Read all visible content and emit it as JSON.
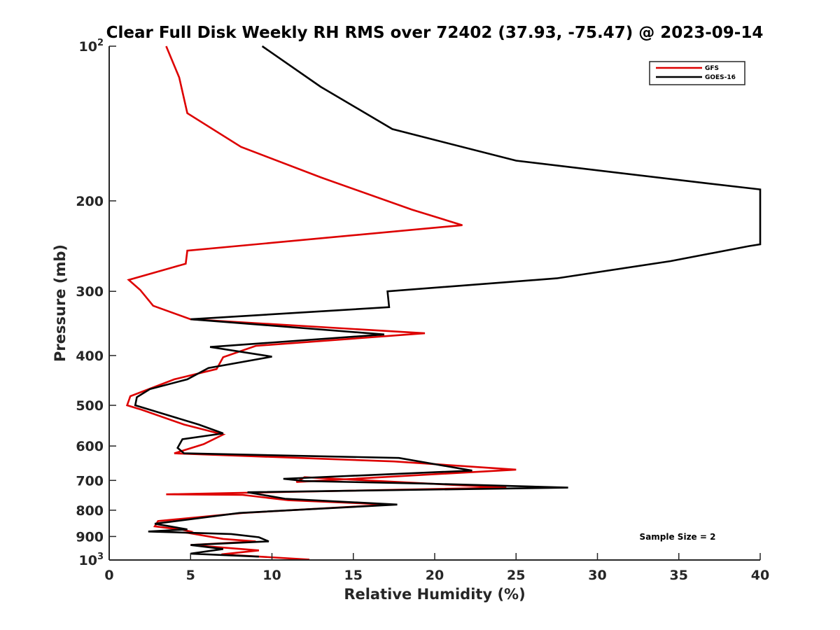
{
  "chart_data": {
    "type": "line",
    "title": "Clear Full Disk Weekly RH RMS over 72402 (37.93, -75.47) @ 2023-09-14",
    "xlabel": "Relative Humidity (%)",
    "ylabel": "Pressure (mb)",
    "xlim": [
      0,
      40
    ],
    "ylim": [
      100,
      1000
    ],
    "yscale": "log",
    "yreversed": true,
    "grid": false,
    "x_ticks": [
      "0",
      "5",
      "10",
      "15",
      "20",
      "25",
      "30",
      "35",
      "40"
    ],
    "y_ticks": [
      {
        "value": 100,
        "base": "10",
        "exp": "2"
      },
      {
        "value": 200,
        "label": "200"
      },
      {
        "value": 300,
        "label": "300"
      },
      {
        "value": 400,
        "label": "400"
      },
      {
        "value": 500,
        "label": "500"
      },
      {
        "value": 600,
        "label": "600"
      },
      {
        "value": 700,
        "label": "700"
      },
      {
        "value": 800,
        "label": "800"
      },
      {
        "value": 900,
        "label": "900"
      },
      {
        "value": 1000,
        "base": "10",
        "exp": "3"
      }
    ],
    "legend": {
      "position": "top-right",
      "entries": [
        "GFS",
        "GOES-16"
      ]
    },
    "annotation": "Sample Size = 2",
    "series": [
      {
        "name": "GFS",
        "color": "#dd0000",
        "points": [
          [
            3.5,
            100
          ],
          [
            4.3,
            115
          ],
          [
            4.8,
            135
          ],
          [
            8.1,
            157
          ],
          [
            13,
            180
          ],
          [
            18.6,
            208
          ],
          [
            21.7,
            223
          ],
          [
            4.8,
            250
          ],
          [
            4.7,
            265
          ],
          [
            1.2,
            285
          ],
          [
            1.9,
            298
          ],
          [
            2.7,
            320
          ],
          [
            5.0,
            340
          ],
          [
            19.4,
            362
          ],
          [
            9.0,
            383
          ],
          [
            7.0,
            403
          ],
          [
            6.6,
            425
          ],
          [
            4.0,
            445
          ],
          [
            1.3,
            480
          ],
          [
            1.1,
            500
          ],
          [
            2.0,
            510
          ],
          [
            4.6,
            545
          ],
          [
            7.0,
            570
          ],
          [
            5.8,
            595
          ],
          [
            4.0,
            620
          ],
          [
            17.5,
            643
          ],
          [
            25.0,
            667
          ],
          [
            11.5,
            705
          ],
          [
            12.0,
            690
          ],
          [
            24.4,
            723
          ],
          [
            3.5,
            745
          ],
          [
            8.2,
            747
          ],
          [
            11.0,
            765
          ],
          [
            17.3,
            780
          ],
          [
            8.2,
            810
          ],
          [
            3.0,
            840
          ],
          [
            2.8,
            860
          ],
          [
            4.5,
            873
          ],
          [
            5.0,
            880
          ],
          [
            4.8,
            885
          ],
          [
            7.0,
            910
          ],
          [
            9.0,
            920
          ],
          [
            5.0,
            935
          ],
          [
            9.2,
            958
          ],
          [
            6.9,
            975
          ],
          [
            12.3,
            998
          ]
        ]
      },
      {
        "name": "GOES-16",
        "color": "#000000",
        "points": [
          [
            9.4,
            100
          ],
          [
            13.0,
            120
          ],
          [
            17.4,
            145
          ],
          [
            25.0,
            167
          ],
          [
            36.8,
            185
          ],
          [
            40.0,
            190
          ],
          [
            40.0,
            243
          ],
          [
            39.3,
            245
          ],
          [
            34.5,
            262
          ],
          [
            27.5,
            283
          ],
          [
            17.1,
            300
          ],
          [
            17.2,
            322
          ],
          [
            5.0,
            340
          ],
          [
            16.9,
            364
          ],
          [
            6.2,
            385
          ],
          [
            10.0,
            402
          ],
          [
            6.1,
            423
          ],
          [
            4.8,
            445
          ],
          [
            2.5,
            465
          ],
          [
            1.7,
            482
          ],
          [
            1.6,
            500
          ],
          [
            5.5,
            545
          ],
          [
            7.0,
            567
          ],
          [
            4.5,
            582
          ],
          [
            4.2,
            605
          ],
          [
            4.6,
            620
          ],
          [
            17.8,
            633
          ],
          [
            22.3,
            670
          ],
          [
            10.7,
            695
          ],
          [
            12.0,
            702
          ],
          [
            19.4,
            710
          ],
          [
            28.2,
            723
          ],
          [
            8.5,
            738
          ],
          [
            10.8,
            760
          ],
          [
            17.7,
            780
          ],
          [
            8.0,
            810
          ],
          [
            2.8,
            850
          ],
          [
            4.8,
            872
          ],
          [
            2.4,
            880
          ],
          [
            7.5,
            890
          ],
          [
            9.2,
            903
          ],
          [
            9.8,
            920
          ],
          [
            5.0,
            935
          ],
          [
            7.0,
            952
          ],
          [
            5.0,
            972
          ],
          [
            9.2,
            985
          ]
        ]
      }
    ]
  }
}
